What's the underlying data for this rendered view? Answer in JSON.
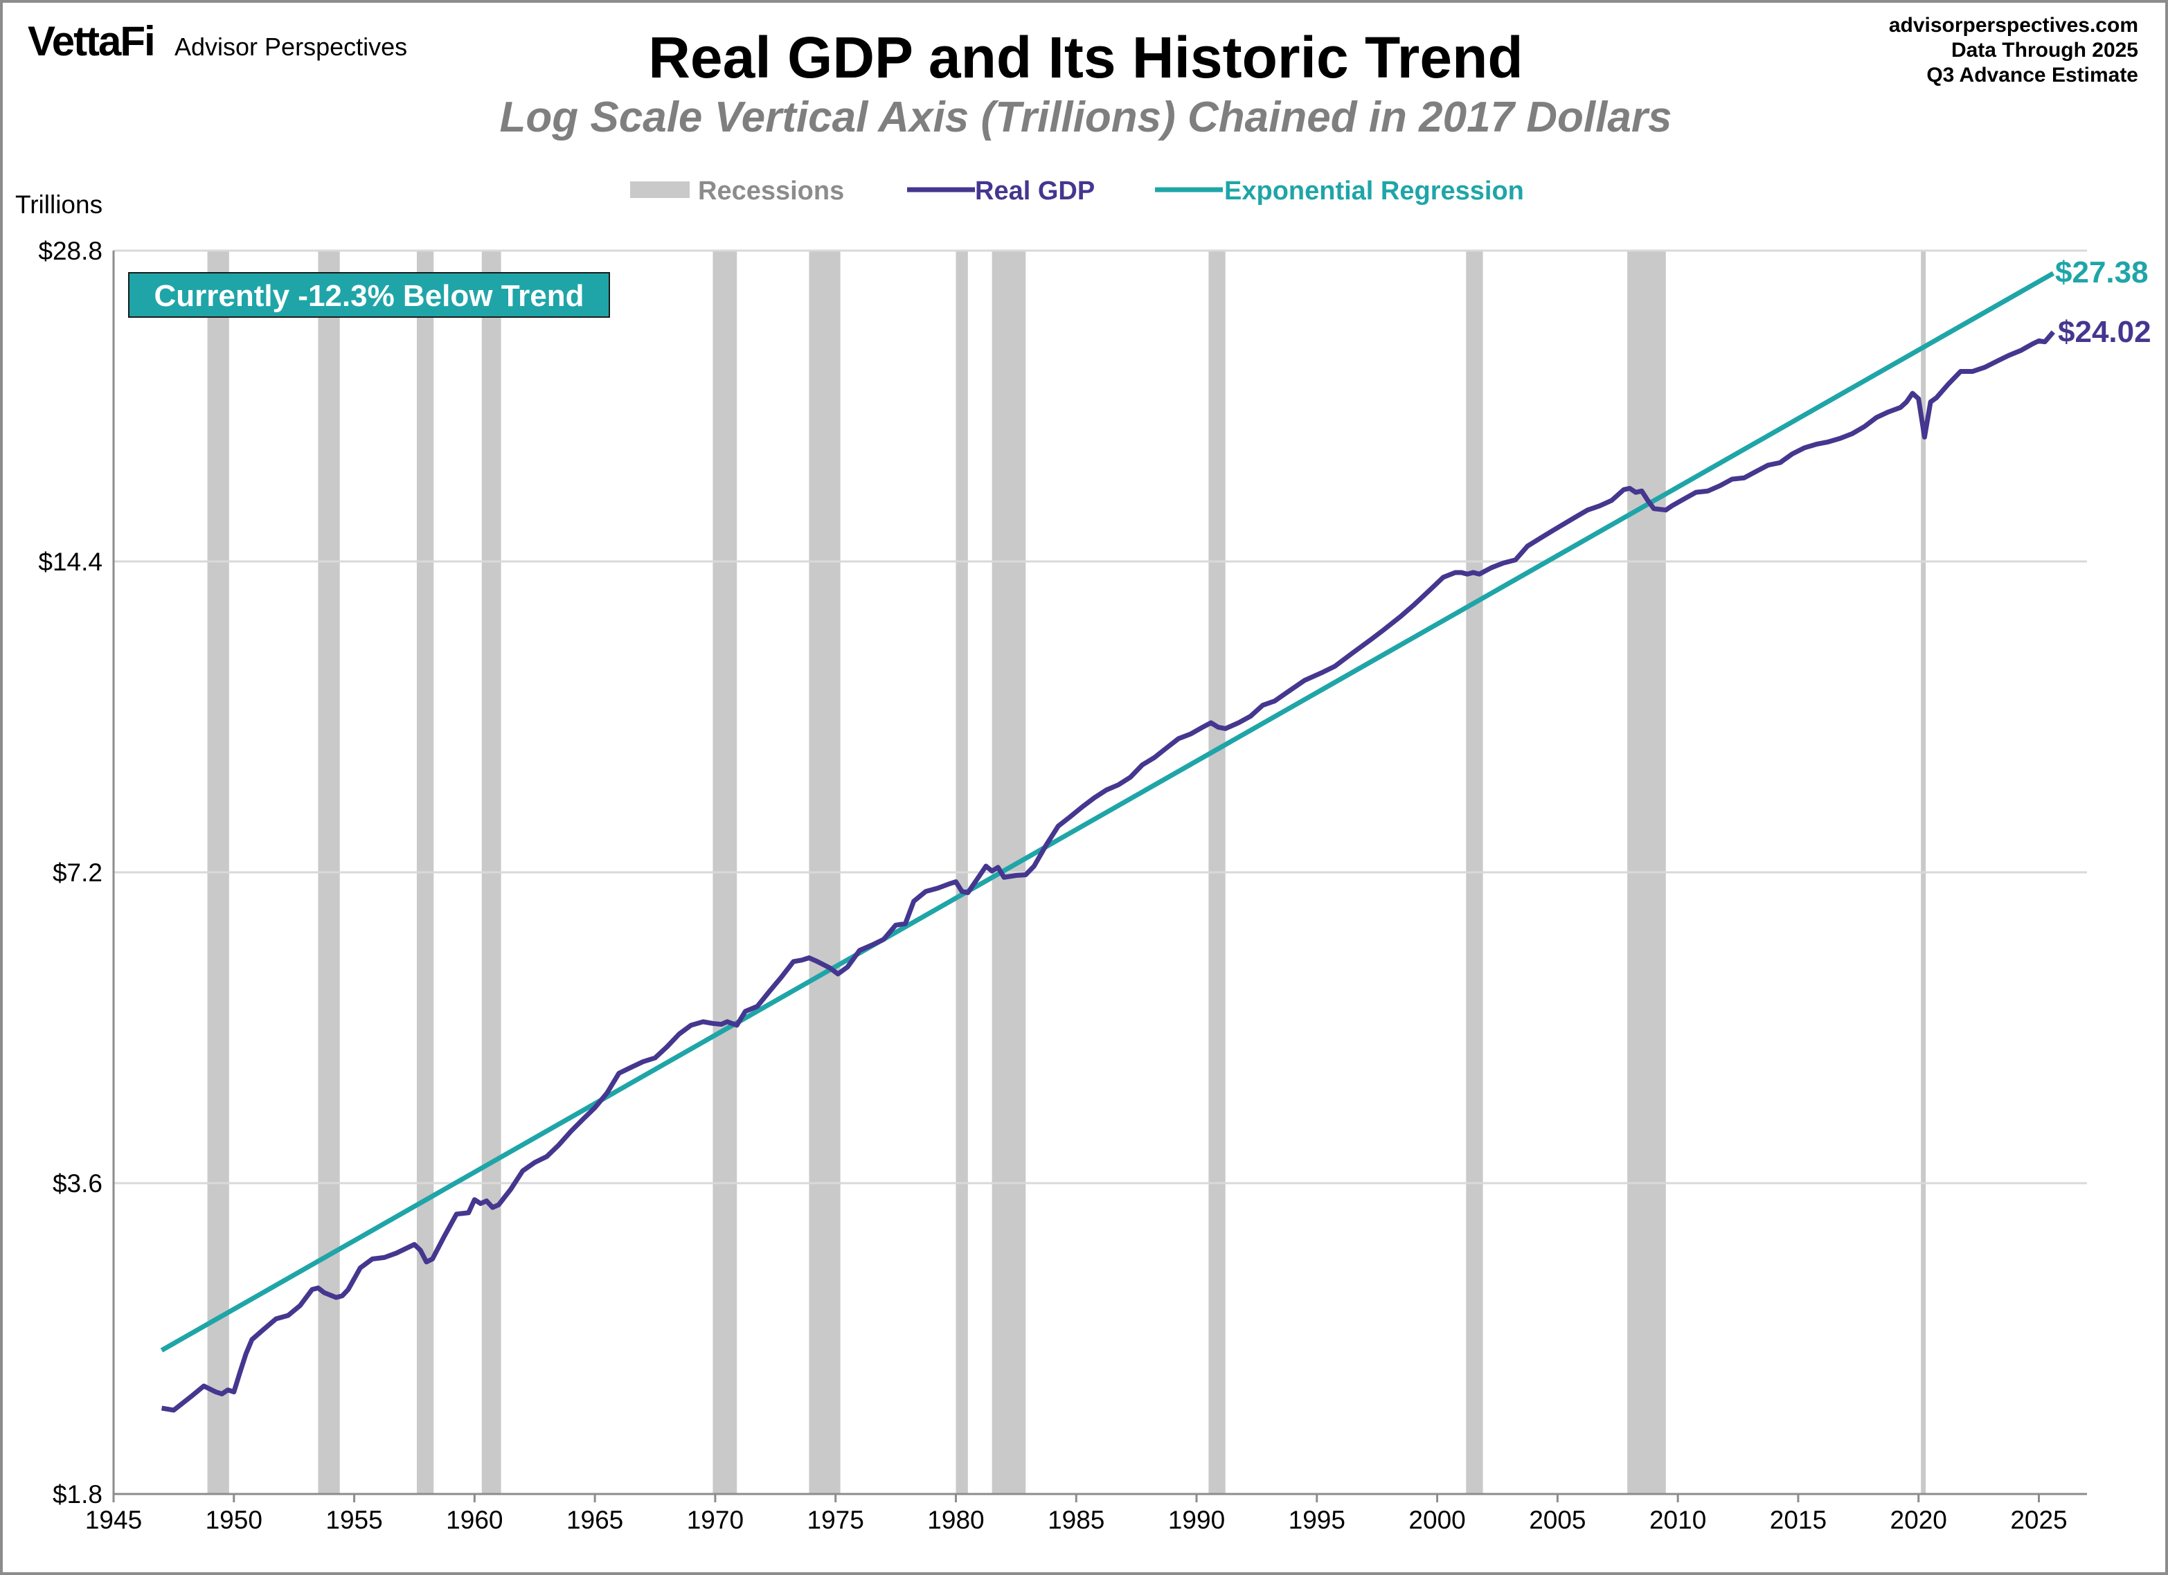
{
  "branding": {
    "logo": "VettaFi",
    "name": "Advisor Perspectives"
  },
  "header": {
    "title": "Real GDP and Its Historic Trend",
    "subtitle": "Log Scale Vertical Axis (Trillions) Chained in 2017 Dollars",
    "source_lines": [
      "advisorperspectives.com",
      "Data Through 2025",
      "Q3 Advance Estimate"
    ]
  },
  "colors": {
    "gdp": "#45368f",
    "trend": "#1fa5a8",
    "recession": "#c9c9c9",
    "grid": "#d9d9d9"
  },
  "chart_data": {
    "type": "line",
    "ylabel": "Trillions",
    "yscale": "log2",
    "ylim": [
      1.8,
      28.8
    ],
    "yticks": [
      {
        "v": 28.8,
        "label": "$28.8"
      },
      {
        "v": 14.4,
        "label": "$14.4"
      },
      {
        "v": 7.2,
        "label": "$7.2"
      },
      {
        "v": 3.6,
        "label": "$3.6"
      },
      {
        "v": 1.8,
        "label": "$1.8"
      }
    ],
    "xlim": [
      1945,
      2027
    ],
    "xticks": [
      1945,
      1950,
      1955,
      1960,
      1965,
      1970,
      1975,
      1980,
      1985,
      1990,
      1995,
      2000,
      2005,
      2010,
      2015,
      2020,
      2025
    ],
    "grid": "horizontal",
    "legend": {
      "position": "top",
      "items": [
        "Recessions",
        "Real GDP",
        "Exponential Regression"
      ]
    },
    "annotation": "Currently -12.3% Below Trend",
    "recessions": [
      [
        1948.9,
        1949.8
      ],
      [
        1953.5,
        1954.4
      ],
      [
        1957.6,
        1958.3
      ],
      [
        1960.3,
        1961.1
      ],
      [
        1969.9,
        1970.9
      ],
      [
        1973.9,
        1975.2
      ],
      [
        1980.0,
        1980.5
      ],
      [
        1981.5,
        1982.9
      ],
      [
        1990.5,
        1991.2
      ],
      [
        2001.2,
        2001.9
      ],
      [
        2007.9,
        2009.5
      ],
      [
        2020.1,
        2020.3
      ]
    ],
    "series": [
      {
        "name": "Real GDP",
        "end_label": "$24.02",
        "points": [
          [
            1947.0,
            2.18
          ],
          [
            1947.5,
            2.17
          ],
          [
            1948.25,
            2.24
          ],
          [
            1948.75,
            2.29
          ],
          [
            1949.25,
            2.26
          ],
          [
            1949.5,
            2.25
          ],
          [
            1949.75,
            2.27
          ],
          [
            1950.0,
            2.26
          ],
          [
            1950.25,
            2.36
          ],
          [
            1950.5,
            2.46
          ],
          [
            1950.75,
            2.54
          ],
          [
            1951.25,
            2.6
          ],
          [
            1951.75,
            2.66
          ],
          [
            1952.25,
            2.68
          ],
          [
            1952.75,
            2.74
          ],
          [
            1953.25,
            2.84
          ],
          [
            1953.5,
            2.85
          ],
          [
            1953.75,
            2.82
          ],
          [
            1954.25,
            2.79
          ],
          [
            1954.5,
            2.8
          ],
          [
            1954.75,
            2.84
          ],
          [
            1955.25,
            2.98
          ],
          [
            1955.75,
            3.04
          ],
          [
            1956.25,
            3.05
          ],
          [
            1956.75,
            3.08
          ],
          [
            1957.25,
            3.12
          ],
          [
            1957.5,
            3.14
          ],
          [
            1957.75,
            3.1
          ],
          [
            1958.0,
            3.02
          ],
          [
            1958.25,
            3.04
          ],
          [
            1958.75,
            3.2
          ],
          [
            1959.25,
            3.36
          ],
          [
            1959.75,
            3.37
          ],
          [
            1960.0,
            3.47
          ],
          [
            1960.25,
            3.44
          ],
          [
            1960.5,
            3.46
          ],
          [
            1960.75,
            3.41
          ],
          [
            1961.0,
            3.43
          ],
          [
            1961.5,
            3.55
          ],
          [
            1962.0,
            3.7
          ],
          [
            1962.5,
            3.77
          ],
          [
            1963.0,
            3.82
          ],
          [
            1963.5,
            3.92
          ],
          [
            1964.0,
            4.04
          ],
          [
            1964.5,
            4.15
          ],
          [
            1965.0,
            4.26
          ],
          [
            1965.5,
            4.4
          ],
          [
            1966.0,
            4.6
          ],
          [
            1966.5,
            4.66
          ],
          [
            1967.0,
            4.72
          ],
          [
            1967.5,
            4.76
          ],
          [
            1968.0,
            4.88
          ],
          [
            1968.5,
            5.02
          ],
          [
            1969.0,
            5.12
          ],
          [
            1969.5,
            5.16
          ],
          [
            1969.9,
            5.14
          ],
          [
            1970.25,
            5.13
          ],
          [
            1970.5,
            5.16
          ],
          [
            1970.9,
            5.12
          ],
          [
            1971.25,
            5.28
          ],
          [
            1971.75,
            5.34
          ],
          [
            1972.25,
            5.52
          ],
          [
            1972.75,
            5.7
          ],
          [
            1973.25,
            5.9
          ],
          [
            1973.6,
            5.92
          ],
          [
            1973.9,
            5.95
          ],
          [
            1974.25,
            5.9
          ],
          [
            1974.75,
            5.82
          ],
          [
            1975.1,
            5.74
          ],
          [
            1975.5,
            5.83
          ],
          [
            1976.0,
            6.05
          ],
          [
            1976.5,
            6.12
          ],
          [
            1977.0,
            6.2
          ],
          [
            1977.5,
            6.4
          ],
          [
            1977.9,
            6.42
          ],
          [
            1978.25,
            6.75
          ],
          [
            1978.75,
            6.9
          ],
          [
            1979.25,
            6.95
          ],
          [
            1979.75,
            7.02
          ],
          [
            1980.0,
            7.05
          ],
          [
            1980.25,
            6.9
          ],
          [
            1980.5,
            6.88
          ],
          [
            1980.9,
            7.1
          ],
          [
            1981.25,
            7.3
          ],
          [
            1981.5,
            7.22
          ],
          [
            1981.75,
            7.28
          ],
          [
            1982.0,
            7.12
          ],
          [
            1982.5,
            7.15
          ],
          [
            1982.9,
            7.16
          ],
          [
            1983.25,
            7.3
          ],
          [
            1983.75,
            7.65
          ],
          [
            1984.25,
            7.98
          ],
          [
            1984.75,
            8.15
          ],
          [
            1985.25,
            8.33
          ],
          [
            1985.75,
            8.5
          ],
          [
            1986.25,
            8.65
          ],
          [
            1986.75,
            8.75
          ],
          [
            1987.25,
            8.9
          ],
          [
            1987.75,
            9.15
          ],
          [
            1988.25,
            9.3
          ],
          [
            1988.75,
            9.5
          ],
          [
            1989.25,
            9.7
          ],
          [
            1989.75,
            9.8
          ],
          [
            1990.25,
            9.95
          ],
          [
            1990.6,
            10.05
          ],
          [
            1990.9,
            9.95
          ],
          [
            1991.2,
            9.92
          ],
          [
            1991.75,
            10.05
          ],
          [
            1992.25,
            10.2
          ],
          [
            1992.75,
            10.45
          ],
          [
            1993.25,
            10.55
          ],
          [
            1993.75,
            10.75
          ],
          [
            1994.5,
            11.05
          ],
          [
            1995.25,
            11.25
          ],
          [
            1995.75,
            11.4
          ],
          [
            1996.5,
            11.75
          ],
          [
            1997.25,
            12.1
          ],
          [
            1997.75,
            12.35
          ],
          [
            1998.5,
            12.75
          ],
          [
            1999.0,
            13.05
          ],
          [
            1999.75,
            13.55
          ],
          [
            2000.25,
            13.9
          ],
          [
            2000.75,
            14.05
          ],
          [
            2001.0,
            14.05
          ],
          [
            2001.25,
            14.0
          ],
          [
            2001.5,
            14.05
          ],
          [
            2001.75,
            14.0
          ],
          [
            2002.25,
            14.2
          ],
          [
            2002.75,
            14.35
          ],
          [
            2003.25,
            14.45
          ],
          [
            2003.75,
            14.9
          ],
          [
            2004.25,
            15.15
          ],
          [
            2004.75,
            15.4
          ],
          [
            2005.25,
            15.65
          ],
          [
            2005.75,
            15.9
          ],
          [
            2006.25,
            16.15
          ],
          [
            2006.75,
            16.3
          ],
          [
            2007.25,
            16.5
          ],
          [
            2007.75,
            16.9
          ],
          [
            2008.0,
            16.95
          ],
          [
            2008.25,
            16.8
          ],
          [
            2008.5,
            16.85
          ],
          [
            2008.75,
            16.5
          ],
          [
            2009.0,
            16.2
          ],
          [
            2009.5,
            16.15
          ],
          [
            2009.75,
            16.3
          ],
          [
            2010.25,
            16.55
          ],
          [
            2010.75,
            16.8
          ],
          [
            2011.25,
            16.85
          ],
          [
            2011.75,
            17.05
          ],
          [
            2012.25,
            17.3
          ],
          [
            2012.75,
            17.35
          ],
          [
            2013.25,
            17.6
          ],
          [
            2013.75,
            17.85
          ],
          [
            2014.25,
            17.95
          ],
          [
            2014.75,
            18.3
          ],
          [
            2015.25,
            18.55
          ],
          [
            2015.75,
            18.7
          ],
          [
            2016.25,
            18.8
          ],
          [
            2016.75,
            18.95
          ],
          [
            2017.25,
            19.15
          ],
          [
            2017.75,
            19.45
          ],
          [
            2018.25,
            19.85
          ],
          [
            2018.75,
            20.1
          ],
          [
            2019.25,
            20.3
          ],
          [
            2019.5,
            20.55
          ],
          [
            2019.75,
            20.95
          ],
          [
            2020.0,
            20.7
          ],
          [
            2020.25,
            19.0
          ],
          [
            2020.5,
            20.55
          ],
          [
            2020.75,
            20.75
          ],
          [
            2021.25,
            21.4
          ],
          [
            2021.75,
            22.0
          ],
          [
            2022.25,
            22.0
          ],
          [
            2022.75,
            22.2
          ],
          [
            2023.25,
            22.5
          ],
          [
            2023.75,
            22.8
          ],
          [
            2024.25,
            23.05
          ],
          [
            2024.75,
            23.4
          ],
          [
            2025.0,
            23.55
          ],
          [
            2025.25,
            23.5
          ],
          [
            2025.6,
            24.02
          ]
        ]
      },
      {
        "name": "Exponential Regression",
        "end_label": "$27.38",
        "points": [
          [
            1947.0,
            2.48
          ],
          [
            2025.6,
            27.38
          ]
        ]
      }
    ]
  }
}
